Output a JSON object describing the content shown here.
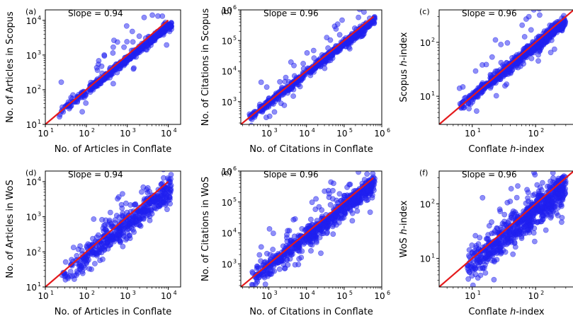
{
  "figure": {
    "background": "#ffffff"
  },
  "colors": {
    "points": "#1f1ff0",
    "fit": "#e41a1c"
  },
  "chart_data": [
    {
      "id": "a",
      "type": "scatter",
      "panel_label": "(a)",
      "slope_text": "Slope = 0.94",
      "xlabel": "No. of Articles in Conflate",
      "ylabel": "No. of Articles in Scopus",
      "scale": "log",
      "xlim": [
        10,
        20000
      ],
      "ylim": [
        10,
        20000
      ],
      "xticks": [
        {
          "v": 10,
          "t": "10"
        },
        {
          "v": 100,
          "t": "10"
        },
        {
          "v": 1000,
          "t": "10"
        },
        {
          "v": 10000,
          "t": "10"
        }
      ],
      "xtick_exp": [
        "1",
        "2",
        "3",
        "4"
      ],
      "yticks": [
        {
          "v": 10,
          "t": "10"
        },
        {
          "v": 100,
          "t": "10"
        },
        {
          "v": 1000,
          "t": "10"
        },
        {
          "v": 10000,
          "t": "10"
        }
      ],
      "ytick_exp": [
        "1",
        "2",
        "3",
        "4"
      ],
      "fit": {
        "slope": 0.94,
        "x": [
          10,
          10000
        ],
        "y": [
          10,
          10000
        ]
      },
      "scatter": {
        "n": 500,
        "xrange": [
          20,
          12000
        ],
        "noise": 0.06,
        "outliers": 0.08,
        "outlier_spread": 0.7,
        "bias": 0.0,
        "seed": 11
      }
    },
    {
      "id": "b",
      "type": "scatter",
      "panel_label": "(b)",
      "slope_text": "Slope = 0.96",
      "xlabel": "No. of Citations in Conflate",
      "ylabel": "No. of Citations in Scopus",
      "scale": "log",
      "xlim": [
        180,
        1000000
      ],
      "ylim": [
        180,
        1000000
      ],
      "xticks": [
        {
          "v": 1000,
          "t": "10"
        },
        {
          "v": 10000,
          "t": "10"
        },
        {
          "v": 100000,
          "t": "10"
        },
        {
          "v": 1000000,
          "t": "10"
        }
      ],
      "xtick_exp": [
        "3",
        "4",
        "5",
        "6"
      ],
      "yticks": [
        {
          "v": 1000,
          "t": "10"
        },
        {
          "v": 10000,
          "t": "10"
        },
        {
          "v": 100000,
          "t": "10"
        },
        {
          "v": 1000000,
          "t": "10"
        }
      ],
      "ytick_exp": [
        "3",
        "4",
        "5",
        "6"
      ],
      "fit": {
        "slope": 0.96,
        "x": [
          180,
          600000
        ],
        "y": [
          180,
          600000
        ]
      },
      "scatter": {
        "n": 600,
        "xrange": [
          300,
          650000
        ],
        "noise": 0.07,
        "outliers": 0.08,
        "outlier_spread": 0.7,
        "bias": 0.0,
        "seed": 23
      }
    },
    {
      "id": "c",
      "type": "scatter",
      "panel_label": "(c)",
      "slope_text": "Slope = 0.96",
      "xlabel": "Conflate h-index",
      "xlabel_italic": "h",
      "ylabel": "Scopus h-index",
      "scale": "log",
      "xlim": [
        3,
        400
      ],
      "ylim": [
        3,
        400
      ],
      "xticks": [
        {
          "v": 10,
          "t": "10"
        },
        {
          "v": 100,
          "t": "10"
        }
      ],
      "xtick_exp": [
        "1",
        "2"
      ],
      "yticks": [
        {
          "v": 10,
          "t": "10"
        },
        {
          "v": 100,
          "t": "10"
        }
      ],
      "ytick_exp": [
        "1",
        "2"
      ],
      "fit": {
        "slope": 0.96,
        "x": [
          3,
          400
        ],
        "y": [
          3,
          400
        ]
      },
      "scatter": {
        "n": 600,
        "xrange": [
          6,
          300
        ],
        "noise": 0.06,
        "outliers": 0.06,
        "outlier_spread": 0.6,
        "bias": 0.0,
        "seed": 37
      }
    },
    {
      "id": "d",
      "type": "scatter",
      "panel_label": "(d)",
      "slope_text": "Slope = 0.94",
      "xlabel": "No. of Articles in Conflate",
      "ylabel": "No. of Articles in WoS",
      "scale": "log",
      "xlim": [
        10,
        20000
      ],
      "ylim": [
        10,
        20000
      ],
      "xticks": [
        {
          "v": 10,
          "t": "10"
        },
        {
          "v": 100,
          "t": "10"
        },
        {
          "v": 1000,
          "t": "10"
        },
        {
          "v": 10000,
          "t": "10"
        }
      ],
      "xtick_exp": [
        "1",
        "2",
        "3",
        "4"
      ],
      "yticks": [
        {
          "v": 10,
          "t": "10"
        },
        {
          "v": 100,
          "t": "10"
        },
        {
          "v": 1000,
          "t": "10"
        },
        {
          "v": 10000,
          "t": "10"
        }
      ],
      "ytick_exp": [
        "1",
        "2",
        "3",
        "4"
      ],
      "fit": {
        "slope": 0.94,
        "x": [
          10,
          10000
        ],
        "y": [
          10,
          10000
        ]
      },
      "scatter": {
        "n": 500,
        "xrange": [
          25,
          12000
        ],
        "noise": 0.18,
        "outliers": 0.1,
        "outlier_spread": 0.8,
        "bias": -0.1,
        "seed": 51
      }
    },
    {
      "id": "e",
      "type": "scatter",
      "panel_label": "(e)",
      "slope_text": "Slope = 0.96",
      "xlabel": "No. of Citations in Conflate",
      "ylabel": "No. of Citations in WoS",
      "scale": "log",
      "xlim": [
        180,
        1000000
      ],
      "ylim": [
        180,
        1000000
      ],
      "xticks": [
        {
          "v": 1000,
          "t": "10"
        },
        {
          "v": 10000,
          "t": "10"
        },
        {
          "v": 100000,
          "t": "10"
        },
        {
          "v": 1000000,
          "t": "10"
        }
      ],
      "xtick_exp": [
        "3",
        "4",
        "5",
        "6"
      ],
      "yticks": [
        {
          "v": 1000,
          "t": "10"
        },
        {
          "v": 10000,
          "t": "10"
        },
        {
          "v": 100000,
          "t": "10"
        },
        {
          "v": 1000000,
          "t": "10"
        }
      ],
      "ytick_exp": [
        "3",
        "4",
        "5",
        "6"
      ],
      "fit": {
        "slope": 0.96,
        "x": [
          180,
          600000
        ],
        "y": [
          180,
          600000
        ]
      },
      "scatter": {
        "n": 700,
        "xrange": [
          350,
          650000
        ],
        "noise": 0.16,
        "outliers": 0.12,
        "outlier_spread": 0.9,
        "bias": -0.15,
        "seed": 67
      }
    },
    {
      "id": "f",
      "type": "scatter",
      "panel_label": "(f)",
      "slope_text": "Slope = 0.96",
      "xlabel": "Conflate h-index",
      "xlabel_italic": "h",
      "ylabel": "WoS h-index",
      "scale": "log",
      "xlim": [
        3,
        400
      ],
      "ylim": [
        3,
        400
      ],
      "xticks": [
        {
          "v": 10,
          "t": "10"
        },
        {
          "v": 100,
          "t": "10"
        }
      ],
      "xtick_exp": [
        "1",
        "2"
      ],
      "yticks": [
        {
          "v": 10,
          "t": "10"
        },
        {
          "v": 100,
          "t": "10"
        }
      ],
      "ytick_exp": [
        "1",
        "2"
      ],
      "fit": {
        "slope": 0.96,
        "x": [
          3,
          400
        ],
        "y": [
          3,
          400
        ]
      },
      "scatter": {
        "n": 700,
        "xrange": [
          8,
          300
        ],
        "noise": 0.14,
        "outliers": 0.08,
        "outlier_spread": 0.7,
        "bias": -0.15,
        "seed": 83
      }
    }
  ]
}
